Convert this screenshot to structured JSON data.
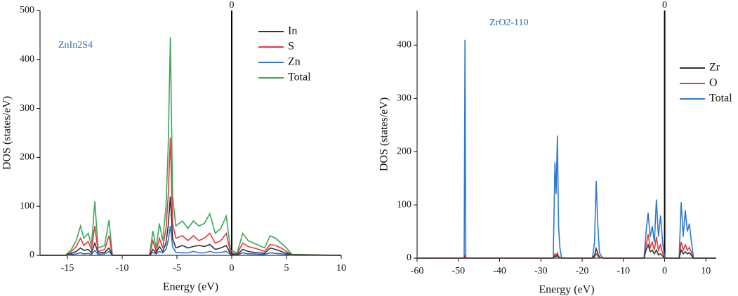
{
  "chart_data": [
    {
      "type": "line",
      "title": "ZnIn2S4",
      "xlabel": "Energy (eV)",
      "ylabel": "DOS (states/eV)",
      "xlim": [
        -17.5,
        10
      ],
      "ylim": [
        0,
        500
      ],
      "xticks": [
        -15,
        -10,
        -5,
        0,
        5,
        10
      ],
      "yticks": [
        0,
        100,
        200,
        300,
        400,
        500
      ],
      "legend": "upper right",
      "annotations": [
        {
          "text": "0",
          "x": 0
        }
      ],
      "x": [
        -17.5,
        -15.2,
        -14.7,
        -14.2,
        -13.8,
        -13.5,
        -13.1,
        -12.8,
        -12.5,
        -12.2,
        -11.6,
        -11.2,
        -10.9,
        -7.5,
        -7.2,
        -6.9,
        -6.6,
        -6.3,
        -6.0,
        -5.8,
        -5.6,
        -5.4,
        -5.1,
        -4.5,
        -4,
        -3.5,
        -3,
        -2.5,
        -2,
        -1.5,
        -1,
        -0.5,
        -0.1,
        0.5,
        1,
        1.5,
        2,
        2.5,
        3,
        3.5,
        4,
        4.5,
        5,
        5.5,
        10
      ],
      "series": [
        {
          "name": "In",
          "color": "#333333",
          "values": [
            0,
            0,
            3,
            8,
            15,
            10,
            12,
            5,
            25,
            5,
            6,
            15,
            0,
            0,
            12,
            5,
            18,
            8,
            25,
            60,
            120,
            35,
            15,
            20,
            15,
            18,
            20,
            18,
            22,
            12,
            15,
            20,
            3,
            1,
            12,
            8,
            6,
            5,
            4,
            15,
            12,
            8,
            4,
            1,
            0
          ]
        },
        {
          "name": "S",
          "color": "#e8383d",
          "values": [
            0,
            0,
            6,
            18,
            35,
            20,
            28,
            12,
            60,
            8,
            12,
            40,
            0,
            0,
            30,
            8,
            35,
            15,
            55,
            120,
            240,
            65,
            35,
            40,
            30,
            40,
            30,
            35,
            45,
            25,
            30,
            45,
            5,
            3,
            25,
            18,
            15,
            12,
            8,
            22,
            20,
            15,
            8,
            1,
            0
          ]
        },
        {
          "name": "Zn",
          "color": "#2f6fd6",
          "values": [
            0,
            0,
            1,
            3,
            5,
            3,
            4,
            2,
            10,
            2,
            3,
            8,
            0,
            0,
            6,
            3,
            8,
            5,
            12,
            30,
            60,
            18,
            6,
            5,
            5,
            8,
            5,
            5,
            8,
            5,
            6,
            8,
            2,
            1,
            5,
            3,
            3,
            2,
            2,
            5,
            4,
            3,
            2,
            0,
            0
          ]
        },
        {
          "name": "Total",
          "color": "#3aa85a",
          "values": [
            0,
            0,
            10,
            30,
            60,
            35,
            45,
            20,
            110,
            15,
            20,
            72,
            0,
            0,
            50,
            15,
            65,
            30,
            100,
            220,
            445,
            120,
            60,
            70,
            55,
            70,
            60,
            65,
            85,
            45,
            55,
            80,
            10,
            5,
            45,
            30,
            25,
            20,
            15,
            40,
            35,
            25,
            15,
            2,
            0
          ]
        }
      ]
    },
    {
      "type": "line",
      "title": "ZrO2-110",
      "xlabel": "Energy (eV)",
      "ylabel": "DOS (states/eV)",
      "xlim": [
        -60,
        12.5
      ],
      "ylim": [
        0,
        465
      ],
      "xticks": [
        -60,
        -50,
        -40,
        -30,
        -20,
        -10,
        0,
        10
      ],
      "yticks": [
        0,
        100,
        200,
        300,
        400
      ],
      "legend": "upper right",
      "annotations": [
        {
          "text": "0",
          "x": 0
        }
      ],
      "x": [
        -60,
        -48.6,
        -48.4,
        -48.2,
        -48,
        -27,
        -26.6,
        -26.3,
        -26,
        -25.7,
        -25.4,
        -25,
        -17.5,
        -17,
        -16.6,
        -16.2,
        -15.8,
        -15,
        -5,
        -4.5,
        -4,
        -3.5,
        -3,
        -2.5,
        -2,
        -1.5,
        -1,
        -0.5,
        0,
        3.5,
        4,
        4.5,
        5,
        5.5,
        6,
        6.5,
        7,
        12.5
      ],
      "series": [
        {
          "name": "Zr",
          "color": "#333333",
          "values": [
            0,
            0,
            2,
            0,
            0,
            0,
            4,
            3,
            5,
            2,
            1,
            0,
            0,
            5,
            18,
            8,
            2,
            0,
            0,
            15,
            25,
            12,
            15,
            8,
            15,
            6,
            8,
            4,
            0,
            0,
            15,
            8,
            12,
            8,
            10,
            5,
            0,
            0
          ]
        },
        {
          "name": "O",
          "color": "#e8383d",
          "values": [
            0,
            0,
            5,
            0,
            0,
            0,
            8,
            5,
            10,
            3,
            1,
            0,
            0,
            2,
            8,
            4,
            1,
            0,
            0,
            25,
            45,
            20,
            30,
            15,
            40,
            15,
            25,
            10,
            0,
            0,
            30,
            15,
            25,
            15,
            20,
            10,
            0,
            0
          ]
        },
        {
          "name": "Total",
          "color": "#2f78d0",
          "values": [
            0,
            0,
            410,
            0,
            0,
            0,
            180,
            120,
            230,
            60,
            20,
            0,
            0,
            30,
            145,
            60,
            10,
            0,
            0,
            50,
            85,
            40,
            60,
            30,
            110,
            40,
            80,
            30,
            0,
            0,
            105,
            40,
            90,
            50,
            65,
            30,
            0,
            0
          ]
        }
      ]
    }
  ]
}
